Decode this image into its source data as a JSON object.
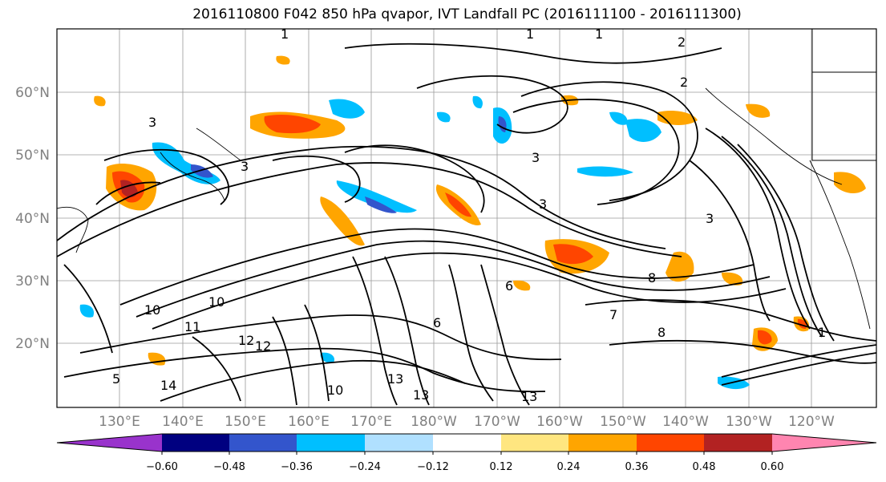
{
  "title": "2016110800 F042 850 hPa qvapor, IVT Landfall PC (2016111100 - 2016111300)",
  "lat_labels": [
    "60°N",
    "50°N",
    "40°N",
    "30°N",
    "20°N"
  ],
  "lon_labels": [
    "130°E",
    "140°E",
    "150°E",
    "160°E",
    "170°E",
    "180°W",
    "170°W",
    "160°W",
    "150°W",
    "140°W",
    "130°W",
    "120°W"
  ],
  "contour_labels": [
    "1",
    "1",
    "1",
    "2",
    "2",
    "3",
    "3",
    "3",
    "3",
    "3",
    "10",
    "10",
    "10",
    "11",
    "12",
    "13",
    "13",
    "13",
    "14",
    "6",
    "6",
    "7",
    "8",
    "8",
    "1",
    "12",
    "5"
  ],
  "colorbar": {
    "ticks": [
      "−0.60",
      "−0.48",
      "−0.36",
      "−0.24",
      "−0.12",
      "0.12",
      "0.24",
      "0.36",
      "0.48",
      "0.60"
    ],
    "colors": [
      "#9933cc",
      "#000080",
      "#3355cc",
      "#00bfff",
      "#b0e0ff",
      "#ffffff",
      "#ffe680",
      "#ffa500",
      "#ff4500",
      "#b22222",
      "#ff85b0"
    ]
  }
}
